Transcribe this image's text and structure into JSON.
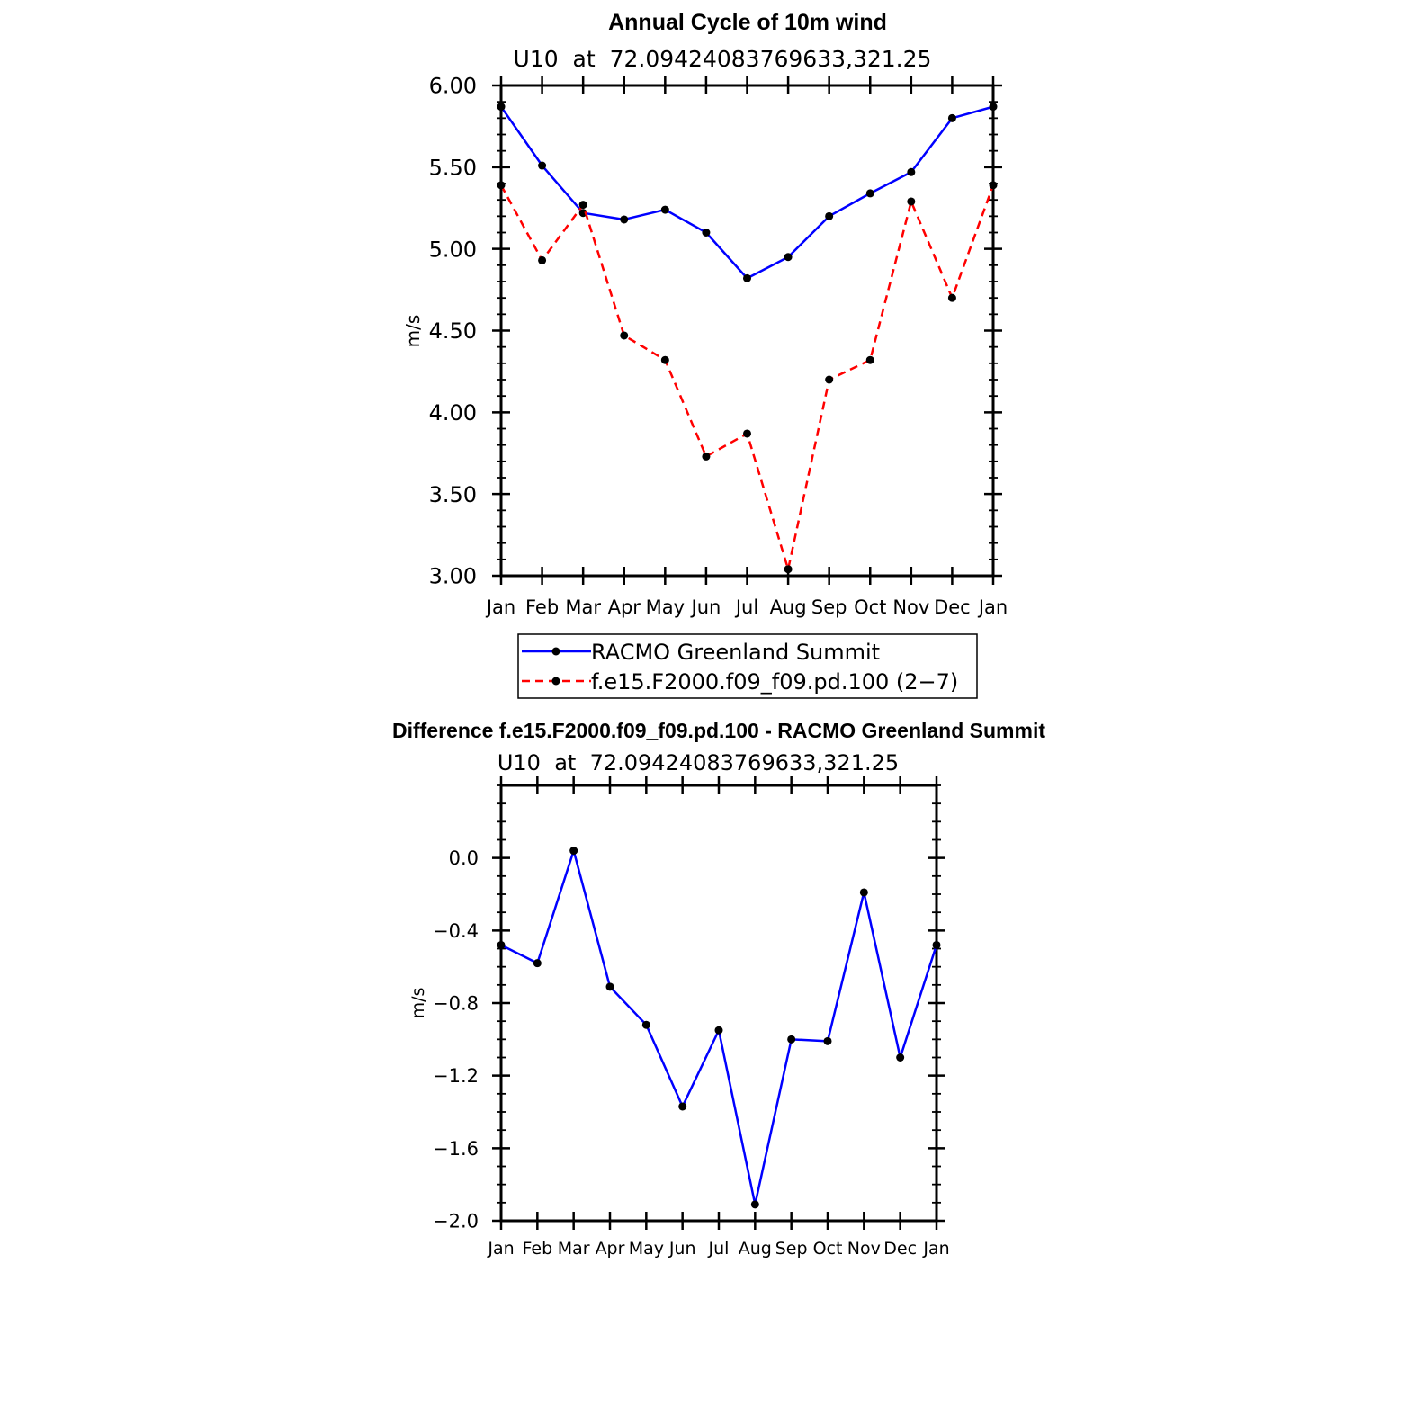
{
  "chart_data": [
    {
      "type": "line",
      "title": "Annual Cycle of 10m wind",
      "subtitle": "U10  at  72.09424083769633,321.25",
      "ylabel": "m/s",
      "xlabel": "",
      "categories": [
        "Jan",
        "Feb",
        "Mar",
        "Apr",
        "May",
        "Jun",
        "Jul",
        "Aug",
        "Sep",
        "Oct",
        "Nov",
        "Dec",
        "Jan"
      ],
      "ylim": [
        3.0,
        6.0
      ],
      "yticks": [
        "3.00",
        "3.50",
        "4.00",
        "4.50",
        "5.00",
        "5.50",
        "6.00"
      ],
      "legend_position": "bottom",
      "series": [
        {
          "name": "RACMO Greenland Summit",
          "color": "#0000ff",
          "dash": "solid",
          "values": [
            5.87,
            5.51,
            5.22,
            5.18,
            5.24,
            5.1,
            4.82,
            4.95,
            5.2,
            5.34,
            5.47,
            5.8,
            5.87
          ]
        },
        {
          "name": "f.e15.F2000.f09_f09.pd.100 (2−7)",
          "color": "#ff0000",
          "dash": "dashed",
          "values": [
            5.39,
            4.93,
            5.27,
            4.47,
            4.32,
            3.73,
            3.87,
            3.04,
            4.2,
            4.32,
            5.29,
            4.7,
            5.39
          ]
        }
      ]
    },
    {
      "type": "line",
      "title": "Difference f.e15.F2000.f09_f09.pd.100 - RACMO Greenland Summit",
      "subtitle": "U10  at  72.09424083769633,321.25",
      "ylabel": "m/s",
      "xlabel": "",
      "categories": [
        "Jan",
        "Feb",
        "Mar",
        "Apr",
        "May",
        "Jun",
        "Jul",
        "Aug",
        "Sep",
        "Oct",
        "Nov",
        "Dec",
        "Jan"
      ],
      "ylim": [
        -2.0,
        0.4
      ],
      "yticks": [
        "−2.0",
        "−1.6",
        "−1.2",
        "−0.8",
        "−0.4",
        "0.0"
      ],
      "series": [
        {
          "name": "Difference",
          "color": "#0000ff",
          "dash": "solid",
          "values": [
            -0.48,
            -0.58,
            0.04,
            -0.71,
            -0.92,
            -1.37,
            -0.95,
            -1.91,
            -1.0,
            -1.01,
            -0.19,
            -1.1,
            -0.48
          ]
        }
      ]
    }
  ]
}
